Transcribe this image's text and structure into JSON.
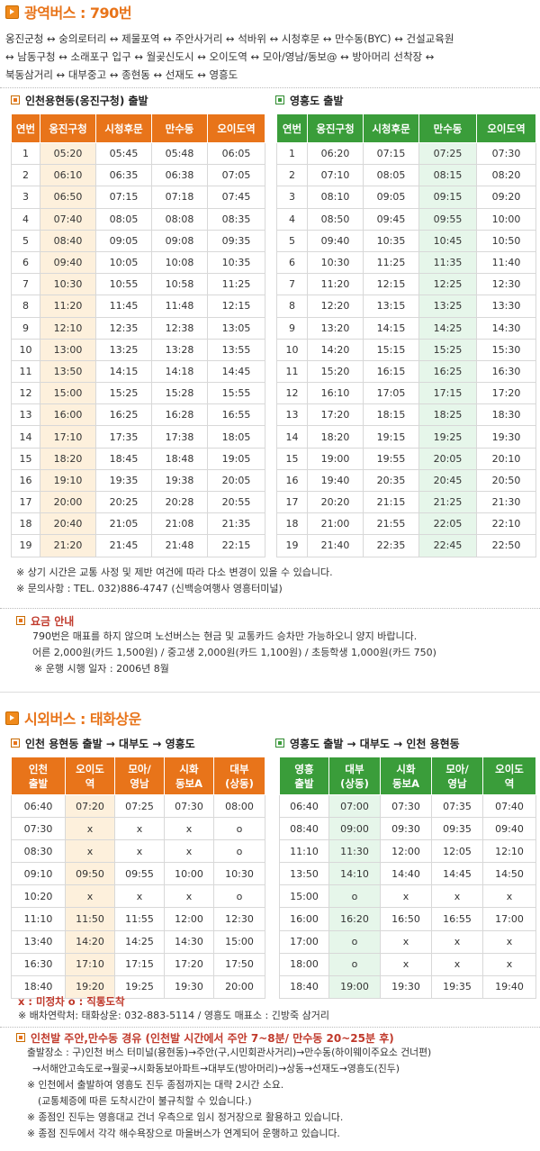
{
  "sections": {
    "express": {
      "title": "광역버스 : 790번",
      "route_lines": [
        "옹진군청 ↔ 숭의로터리 ↔ 제물포역 ↔ 주안사거리 ↔ 석바위 ↔ 시청후문 ↔ 만수동(BYC) ↔ 건설교육원",
        "↔ 남동구청 ↔ 소래포구 입구 ↔ 월곶신도시 ↔ 오이도역 ↔ 모아/영남/동보@ ↔ 방아머리 선착장 ↔",
        "북동삼거리 ↔ 대부중고 ↔ 종현동 ↔ 선재도 ↔ 영흥도"
      ],
      "left_table": {
        "title": "인천용현동(옹진구청) 출발",
        "headers": [
          "연번",
          "옹진구청",
          "시청후문",
          "만수동",
          "오이도역"
        ],
        "rows": [
          [
            "1",
            "05:20",
            "05:45",
            "05:48",
            "06:05"
          ],
          [
            "2",
            "06:10",
            "06:35",
            "06:38",
            "07:05"
          ],
          [
            "3",
            "06:50",
            "07:15",
            "07:18",
            "07:45"
          ],
          [
            "4",
            "07:40",
            "08:05",
            "08:08",
            "08:35"
          ],
          [
            "5",
            "08:40",
            "09:05",
            "09:08",
            "09:35"
          ],
          [
            "6",
            "09:40",
            "10:05",
            "10:08",
            "10:35"
          ],
          [
            "7",
            "10:30",
            "10:55",
            "10:58",
            "11:25"
          ],
          [
            "8",
            "11:20",
            "11:45",
            "11:48",
            "12:15"
          ],
          [
            "9",
            "12:10",
            "12:35",
            "12:38",
            "13:05"
          ],
          [
            "10",
            "13:00",
            "13:25",
            "13:28",
            "13:55"
          ],
          [
            "11",
            "13:50",
            "14:15",
            "14:18",
            "14:45"
          ],
          [
            "12",
            "15:00",
            "15:25",
            "15:28",
            "15:55"
          ],
          [
            "13",
            "16:00",
            "16:25",
            "16:28",
            "16:55"
          ],
          [
            "14",
            "17:10",
            "17:35",
            "17:38",
            "18:05"
          ],
          [
            "15",
            "18:20",
            "18:45",
            "18:48",
            "19:05"
          ],
          [
            "16",
            "19:10",
            "19:35",
            "19:38",
            "20:05"
          ],
          [
            "17",
            "20:00",
            "20:25",
            "20:28",
            "20:55"
          ],
          [
            "18",
            "20:40",
            "21:05",
            "21:08",
            "21:35"
          ],
          [
            "19",
            "21:20",
            "21:45",
            "21:48",
            "22:15"
          ]
        ]
      },
      "right_table": {
        "title": "영흥도 출발",
        "headers": [
          "연번",
          "옹진구청",
          "시청후문",
          "만수동",
          "오이도역"
        ],
        "rows": [
          [
            "1",
            "06:20",
            "07:15",
            "07:25",
            "07:30"
          ],
          [
            "2",
            "07:10",
            "08:05",
            "08:15",
            "08:20"
          ],
          [
            "3",
            "08:10",
            "09:05",
            "09:15",
            "09:20"
          ],
          [
            "4",
            "08:50",
            "09:45",
            "09:55",
            "10:00"
          ],
          [
            "5",
            "09:40",
            "10:35",
            "10:45",
            "10:50"
          ],
          [
            "6",
            "10:30",
            "11:25",
            "11:35",
            "11:40"
          ],
          [
            "7",
            "11:20",
            "12:15",
            "12:25",
            "12:30"
          ],
          [
            "8",
            "12:20",
            "13:15",
            "13:25",
            "13:30"
          ],
          [
            "9",
            "13:20",
            "14:15",
            "14:25",
            "14:30"
          ],
          [
            "10",
            "14:20",
            "15:15",
            "15:25",
            "15:30"
          ],
          [
            "11",
            "15:20",
            "16:15",
            "16:25",
            "16:30"
          ],
          [
            "12",
            "16:10",
            "17:05",
            "17:15",
            "17:20"
          ],
          [
            "13",
            "17:20",
            "18:15",
            "18:25",
            "18:30"
          ],
          [
            "14",
            "18:20",
            "19:15",
            "19:25",
            "19:30"
          ],
          [
            "15",
            "19:00",
            "19:55",
            "20:05",
            "20:10"
          ],
          [
            "16",
            "19:40",
            "20:35",
            "20:45",
            "20:50"
          ],
          [
            "17",
            "20:20",
            "21:15",
            "21:25",
            "21:30"
          ],
          [
            "18",
            "21:00",
            "21:55",
            "22:05",
            "22:10"
          ],
          [
            "19",
            "21:40",
            "22:35",
            "22:45",
            "22:50"
          ]
        ]
      },
      "notes": [
        "※ 상기 시간은 교통 사정 및 제반 여건에 따라 다소 변경이 있을 수 있습니다.",
        "※ 문의사항 : TEL. 032)886-4747 (신백승여행사 영흥터미널)"
      ],
      "fare": {
        "title": "요금 안내",
        "lines": [
          "790번은 매표를 하지 않으며 노선버스는 현금 및 교통카드 승차만 가능하오니 양지 바랍니다.",
          "어른 2,000원(카드 1,500원) / 중고생 2,000원(카드 1,100원) / 초등학생 1,000원(카드 750)",
          "※ 운행 시행 일자 : 2006년 8월"
        ]
      }
    },
    "intercity": {
      "title": "시외버스 : 태화상운",
      "left_table": {
        "title": "인천 용현동 출발 → 대부도 → 영흥도",
        "headers": [
          [
            "인천",
            "출발"
          ],
          [
            "오이도",
            "역"
          ],
          [
            "모아/",
            "영남"
          ],
          [
            "시화",
            "동보A"
          ],
          [
            "대부",
            "(상동)"
          ]
        ],
        "rows": [
          [
            "06:40",
            "07:20",
            "07:25",
            "07:30",
            "08:00"
          ],
          [
            "07:30",
            "x",
            "x",
            "x",
            "o"
          ],
          [
            "08:30",
            "x",
            "x",
            "x",
            "o"
          ],
          [
            "09:10",
            "09:50",
            "09:55",
            "10:00",
            "10:30"
          ],
          [
            "10:20",
            "x",
            "x",
            "x",
            "o"
          ],
          [
            "11:10",
            "11:50",
            "11:55",
            "12:00",
            "12:30"
          ],
          [
            "13:40",
            "14:20",
            "14:25",
            "14:30",
            "15:00"
          ],
          [
            "16:30",
            "17:10",
            "17:15",
            "17:20",
            "17:50"
          ],
          [
            "18:40",
            "19:20",
            "19:25",
            "19:30",
            "20:00"
          ]
        ]
      },
      "right_table": {
        "title": "영흥도 출발 → 대부도 → 인천 용현동",
        "headers": [
          [
            "영흥",
            "출발"
          ],
          [
            "대부",
            "(상동)"
          ],
          [
            "시화",
            "동보A"
          ],
          [
            "모아/",
            "영남"
          ],
          [
            "오이도",
            "역"
          ]
        ],
        "rows": [
          [
            "06:40",
            "07:00",
            "07:30",
            "07:35",
            "07:40"
          ],
          [
            "08:40",
            "09:00",
            "09:30",
            "09:35",
            "09:40"
          ],
          [
            "11:10",
            "11:30",
            "12:00",
            "12:05",
            "12:10"
          ],
          [
            "13:50",
            "14:10",
            "14:40",
            "14:45",
            "14:50"
          ],
          [
            "15:00",
            "o",
            "x",
            "x",
            "x"
          ],
          [
            "16:00",
            "16:20",
            "16:50",
            "16:55",
            "17:00"
          ],
          [
            "17:00",
            "o",
            "x",
            "x",
            "x"
          ],
          [
            "18:00",
            "o",
            "x",
            "x",
            "x"
          ],
          [
            "18:40",
            "19:00",
            "19:30",
            "19:35",
            "19:40"
          ]
        ]
      },
      "legend": "x : 미정차   o : 직통도착",
      "contact": "※ 배차연락처: 태화상운: 032-883-5114 / 영흥도 매표소 : 긴방죽 삼거리",
      "via": {
        "title": "인천발 주안,만수동 경유 (인천발 시간에서 주안 7~8분/ 만수동 20~25분 후)",
        "lines": [
          "출발장소 : 구)인천 버스 터미널(용현동)→주안(구,시민회관사거리)→만수동(하이웨이주요소  건너편)",
          "→서해안고속도로→월곶→시화동보아파트→대부도(방아머리)→상동→선재도→영흥도(진두)",
          "※ 인천에서 출발하여 영흥도 진두 종점까지는 대략 2시간 소요.",
          "(교통체증에 따른 도착시간이 불규칙할 수 있습니다.)",
          "※ 종점인 진두는 영흥대교 건너 우측으로 임시 정거장으로 활용하고 있습니다.",
          "※ 종점 진두에서 각각 해수욕장으로 마을버스가 연계되어 운행하고 있습니다."
        ]
      }
    }
  }
}
